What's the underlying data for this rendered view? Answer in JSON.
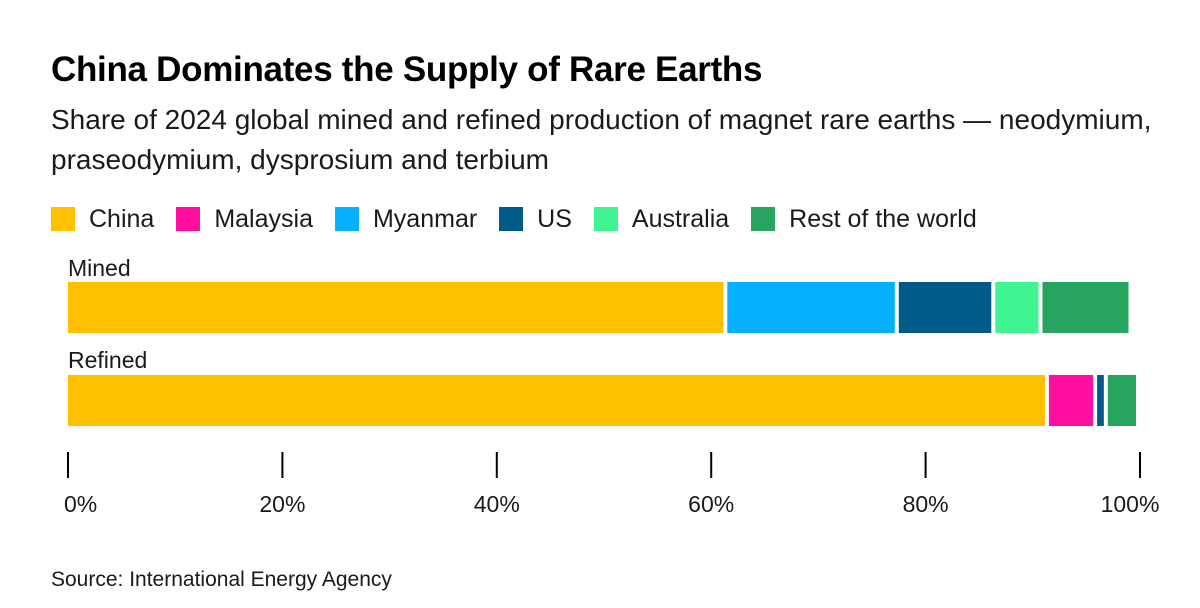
{
  "chart_data": {
    "type": "bar",
    "orientation": "horizontal",
    "stacked": true,
    "title": "China Dominates the Supply of Rare Earths",
    "subtitle": "Share of 2024 global mined and refined production of magnet rare earths — neodymium, praseodymium, dysprosium and terbium",
    "categories": [
      "Mined",
      "Refined"
    ],
    "series": [
      {
        "name": "China",
        "color": "#FFC000",
        "values": [
          61.5,
          91.5
        ]
      },
      {
        "name": "Malaysia",
        "color": "#FF0D9D",
        "values": [
          0,
          4.5
        ]
      },
      {
        "name": "Myanmar",
        "color": "#06B0FF",
        "values": [
          16,
          0
        ]
      },
      {
        "name": "US",
        "color": "#005A87",
        "values": [
          9,
          1
        ]
      },
      {
        "name": "Australia",
        "color": "#3EF591",
        "values": [
          4.4,
          0
        ]
      },
      {
        "name": "Rest of the world",
        "color": "#27A45E",
        "values": [
          8.4,
          3
        ]
      }
    ],
    "xlim": [
      0,
      100
    ],
    "xticks": [
      "0%",
      "20%",
      "40%",
      "60%",
      "80%",
      "100%"
    ],
    "source": "Source: International Energy Agency"
  }
}
